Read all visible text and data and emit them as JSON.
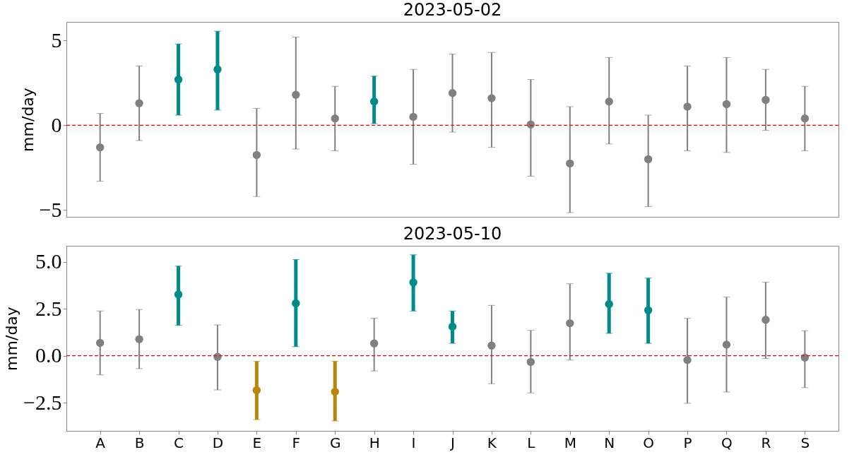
{
  "chart_data": [
    {
      "type": "scatter",
      "title": "2023-05-02",
      "ylabel": "mm/day",
      "categories": [
        null,
        null,
        null,
        null,
        null,
        null,
        null,
        null,
        null,
        null,
        null,
        null,
        null,
        null,
        null,
        null,
        null,
        null,
        null
      ],
      "values": [
        -1.3,
        1.3,
        2.7,
        3.3,
        -1.75,
        1.8,
        0.4,
        1.4,
        0.5,
        1.9,
        1.6,
        0.05,
        -2.25,
        1.4,
        -2.0,
        1.1,
        1.25,
        1.5,
        0.4
      ],
      "errors": [
        [
          -3.3,
          0.7
        ],
        [
          -0.9,
          3.5
        ],
        [
          0.6,
          4.8
        ],
        [
          0.9,
          5.55
        ],
        [
          -4.2,
          1.0
        ],
        [
          -1.4,
          5.2
        ],
        [
          -1.5,
          2.3
        ],
        [
          0.1,
          2.9
        ],
        [
          -2.3,
          3.3
        ],
        [
          -0.4,
          4.2
        ],
        [
          -1.3,
          4.3
        ],
        [
          -3.0,
          2.7
        ],
        [
          -5.15,
          1.1
        ],
        [
          -1.1,
          4.0
        ],
        [
          -4.8,
          0.6
        ],
        [
          -1.5,
          3.5
        ],
        [
          -1.6,
          4.0
        ],
        [
          -0.3,
          3.3
        ],
        [
          -1.5,
          2.3
        ]
      ],
      "colors": [
        "#808080",
        "#808080",
        "#008b8b",
        "#008b8b",
        "#808080",
        "#808080",
        "#808080",
        "#008b8b",
        "#808080",
        "#808080",
        "#808080",
        "#808080",
        "#808080",
        "#808080",
        "#808080",
        "#808080",
        "#808080",
        "#808080",
        "#808080"
      ],
      "ylim": [
        -5.4,
        6.1
      ],
      "yticks": [
        {
          "value": -5,
          "label": "−5"
        },
        0,
        5
      ],
      "tick_labels": "y",
      "grid": false,
      "marker": "circle",
      "ref_lines": [
        {
          "axis": "y",
          "value": 0,
          "color": "#ff0000",
          "line_style": "dashed"
        }
      ]
    },
    {
      "type": "scatter",
      "title": "2023-05-10",
      "ylabel": "mm/day",
      "categories": [
        "A",
        "B",
        "C",
        "D",
        "E",
        "F",
        "G",
        "H",
        "I",
        "J",
        "K",
        "L",
        "M",
        "N",
        "O",
        "P",
        "Q",
        "R",
        "S"
      ],
      "values": [
        0.68,
        0.88,
        3.26,
        -0.06,
        -1.84,
        2.79,
        -1.91,
        0.65,
        3.9,
        1.55,
        0.54,
        -0.33,
        1.73,
        2.75,
        2.42,
        -0.23,
        0.59,
        1.91,
        -0.1
      ],
      "errors": [
        [
          -1.02,
          2.38
        ],
        [
          -0.69,
          2.46
        ],
        [
          1.62,
          4.77
        ],
        [
          -1.82,
          1.64
        ],
        [
          -3.4,
          -0.3
        ],
        [
          0.48,
          5.12
        ],
        [
          -3.47,
          -0.29
        ],
        [
          -0.81,
          2.0
        ],
        [
          2.38,
          5.37
        ],
        [
          0.66,
          2.38
        ],
        [
          -1.49,
          2.68
        ],
        [
          -1.98,
          1.35
        ],
        [
          -0.23,
          3.83
        ],
        [
          1.19,
          4.39
        ],
        [
          0.66,
          4.13
        ],
        [
          -2.53,
          1.99
        ],
        [
          -1.93,
          3.12
        ],
        [
          -0.15,
          3.91
        ],
        [
          -1.7,
          1.33
        ]
      ],
      "colors": [
        "#808080",
        "#808080",
        "#008b8b",
        "#808080",
        "#b8860b",
        "#008b8b",
        "#b8860b",
        "#808080",
        "#008b8b",
        "#008b8b",
        "#808080",
        "#808080",
        "#808080",
        "#008b8b",
        "#008b8b",
        "#808080",
        "#808080",
        "#808080",
        "#808080"
      ],
      "ylim": [
        -4.0,
        5.85
      ],
      "yticks": [
        {
          "value": -2.5,
          "label": "−2.5"
        },
        {
          "value": 0,
          "label": "0.0"
        },
        {
          "value": 2.5,
          "label": "2.5"
        },
        {
          "value": 5,
          "label": "5.0"
        }
      ],
      "grid": false,
      "marker": "circle",
      "ref_lines": [
        {
          "axis": "y",
          "value": 0,
          "color": "#ff0000",
          "line_style": "dashed"
        }
      ]
    }
  ]
}
